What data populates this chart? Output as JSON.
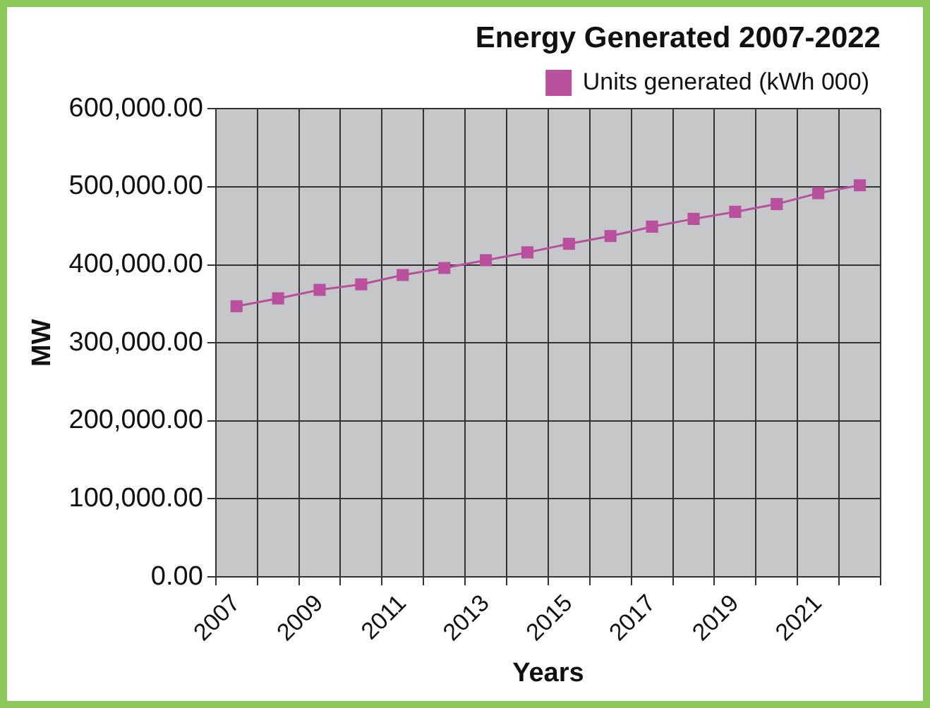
{
  "chart_data": {
    "type": "line",
    "title": "Energy Generated 2007-2022",
    "xlabel": "Years",
    "ylabel": "MW",
    "categories": [
      "2007",
      null,
      "2009",
      null,
      "2011",
      null,
      "2013",
      null,
      "2015",
      null,
      "2017",
      null,
      "2019",
      null,
      "2021",
      null
    ],
    "series": [
      {
        "name": "Units generated (kWh 000)",
        "color": "#b8509e",
        "values": [
          347000,
          357000,
          368000,
          375000,
          387000,
          396000,
          406000,
          416000,
          427000,
          437000,
          449000,
          459000,
          468000,
          478000,
          492000,
          502000
        ]
      }
    ],
    "ylim": [
      0,
      600000
    ],
    "yticks": [
      {
        "value": 0,
        "label": "0.00"
      },
      {
        "value": 100000,
        "label": "100,000.00"
      },
      {
        "value": 200000,
        "label": "200,000.00"
      },
      {
        "value": 300000,
        "label": "300,000.00"
      },
      {
        "value": 400000,
        "label": "400,000.00"
      },
      {
        "value": 500000,
        "label": "500,000.00"
      },
      {
        "value": 600000,
        "label": "600,000.00"
      }
    ],
    "grid": true,
    "legend": "top right",
    "marker": "square",
    "line_style": "solid"
  }
}
